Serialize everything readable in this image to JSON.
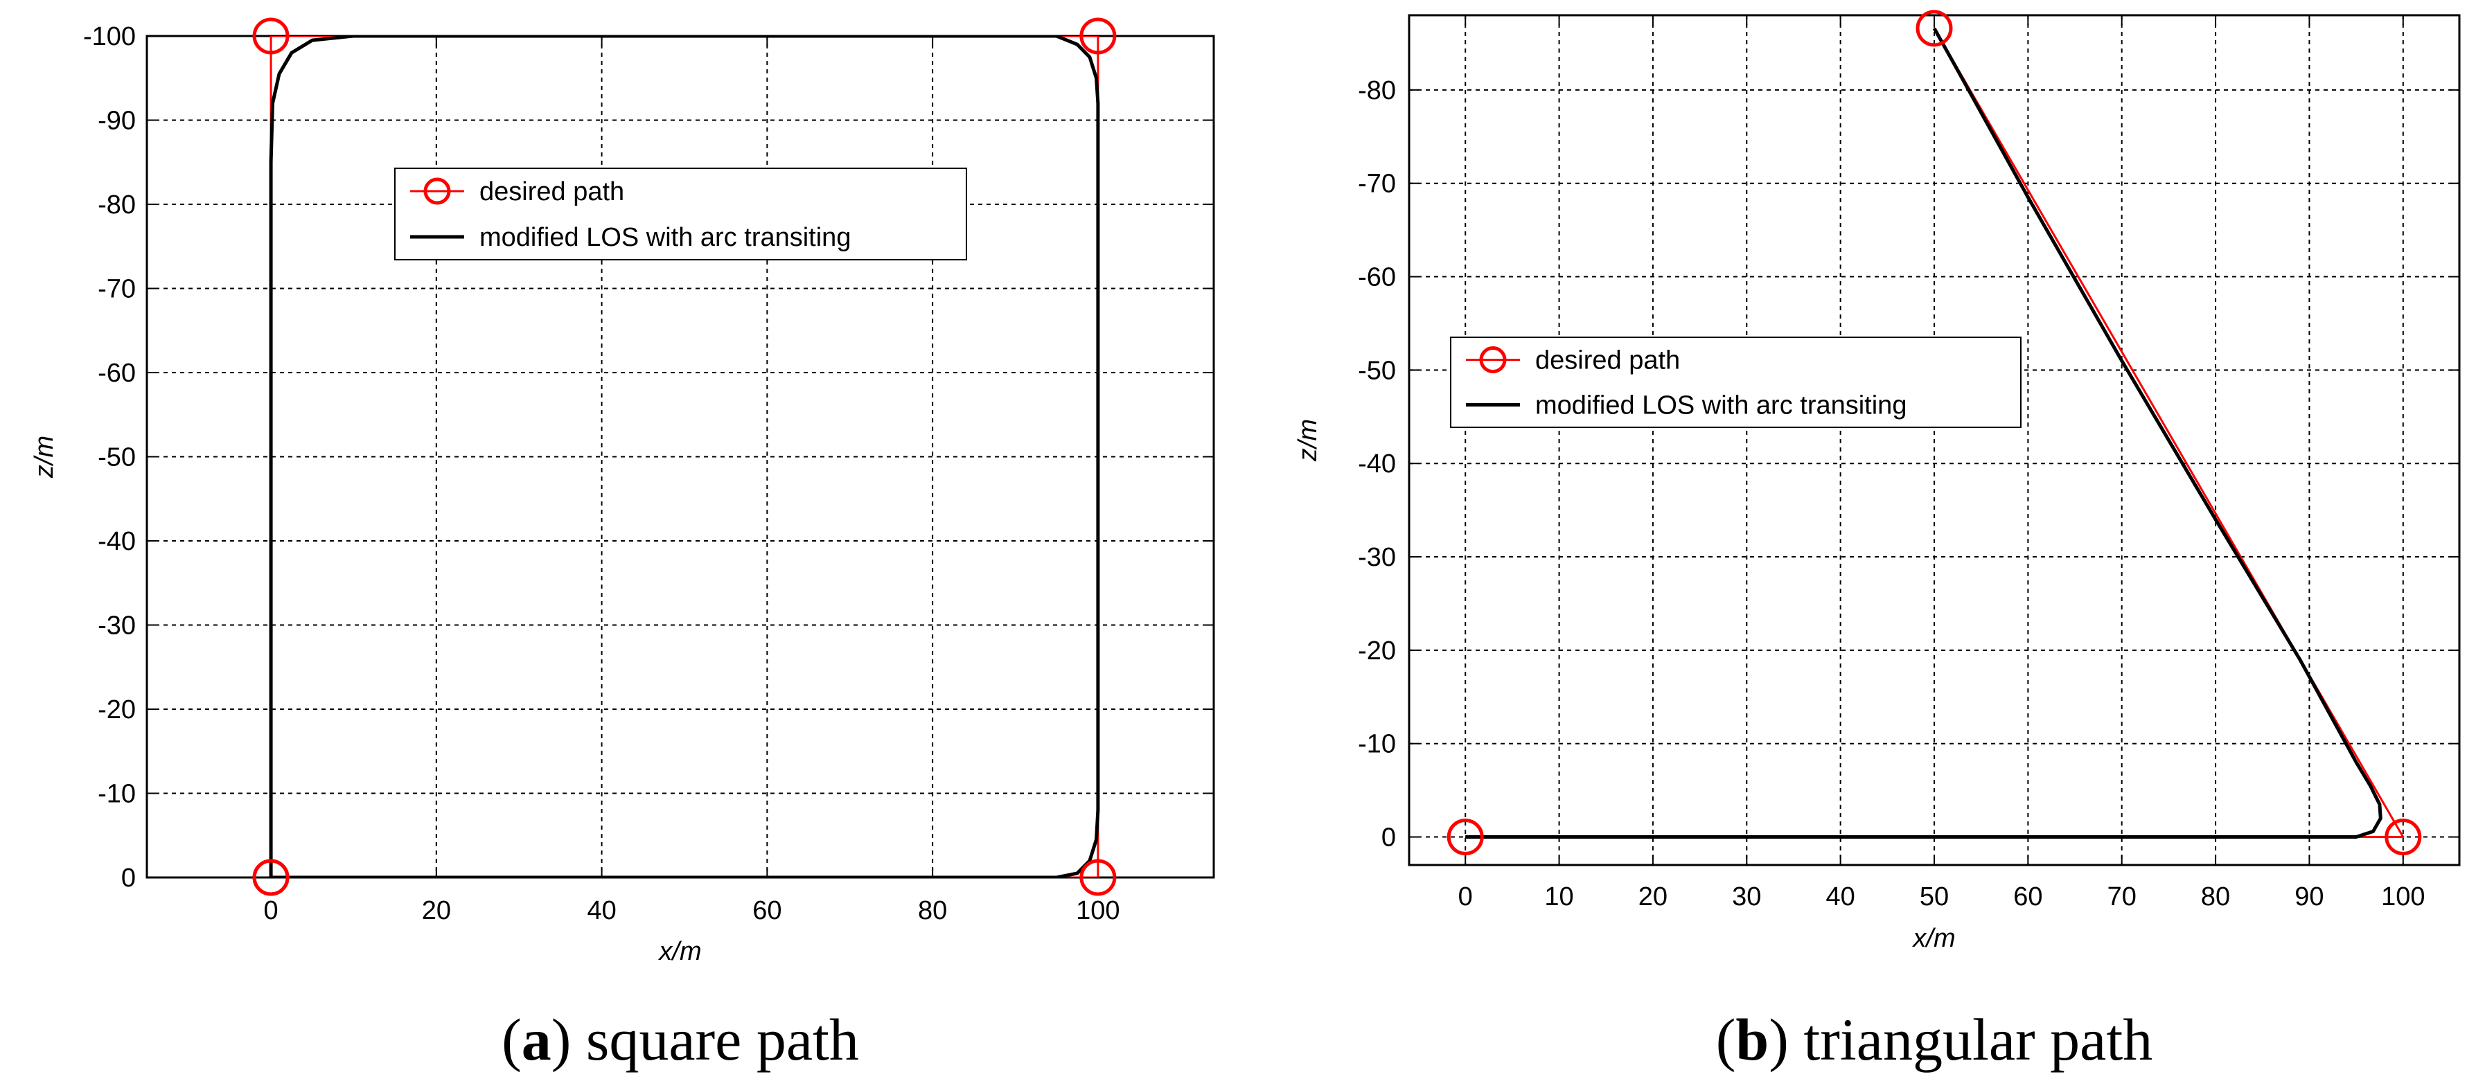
{
  "chart_data": [
    {
      "type": "line",
      "caption_letter": "a",
      "caption_text": "square path",
      "xlabel": "x/m",
      "ylabel": "z/m",
      "xlim": [
        -15,
        114
      ],
      "ylim": [
        0,
        -100
      ],
      "y_reversed": true,
      "grid": true,
      "xticks": [
        0,
        20,
        40,
        60,
        80,
        100
      ],
      "yticks": [
        -100,
        -90,
        -80,
        -70,
        -60,
        -50,
        -40,
        -30,
        -20,
        -10,
        0
      ],
      "legend_position": "upper-center",
      "series": [
        {
          "name": "desired path",
          "color": "#ff0000",
          "marker": "circle",
          "x": [
            0,
            100,
            100,
            0,
            0
          ],
          "y": [
            0,
            0,
            -100,
            -100,
            0
          ]
        },
        {
          "name": "modified LOS with arc transiting",
          "color": "#000000",
          "marker": "none",
          "x": [
            0,
            95,
            97.5,
            99,
            99.8,
            100,
            100,
            99.8,
            99,
            97.5,
            95,
            10,
            5,
            2.5,
            1,
            0.2,
            0,
            0
          ],
          "y": [
            0,
            0,
            -0.5,
            -2,
            -4.5,
            -8,
            -92,
            -95,
            -97.5,
            -99,
            -100,
            -100,
            -99.5,
            -98,
            -95.5,
            -92,
            -85,
            0
          ]
        }
      ]
    },
    {
      "type": "line",
      "caption_letter": "b",
      "caption_text": "triangular path",
      "xlabel": "x/m",
      "ylabel": "z/m",
      "xlim": [
        -6,
        106
      ],
      "ylim": [
        3,
        -88
      ],
      "y_reversed": true,
      "grid": true,
      "xticks": [
        0,
        10,
        20,
        30,
        40,
        50,
        60,
        70,
        80,
        90,
        100
      ],
      "yticks": [
        -80,
        -70,
        -60,
        -50,
        -40,
        -30,
        -20,
        -10,
        0
      ],
      "legend_position": "center-left",
      "series": [
        {
          "name": "desired path",
          "color": "#ff0000",
          "marker": "circle",
          "x": [
            0,
            100,
            50
          ],
          "y": [
            0,
            0,
            -86.6
          ]
        },
        {
          "name": "modified LOS with arc transiting",
          "color": "#000000",
          "marker": "none",
          "x": [
            0,
            95,
            96.8,
            97.6,
            97.5,
            96.5,
            95,
            89,
            80,
            70,
            60,
            52,
            50
          ],
          "y": [
            0,
            0,
            -0.6,
            -2,
            -3.5,
            -5.5,
            -8,
            -19,
            -34,
            -51,
            -68.5,
            -83,
            -86.6
          ]
        }
      ]
    }
  ]
}
